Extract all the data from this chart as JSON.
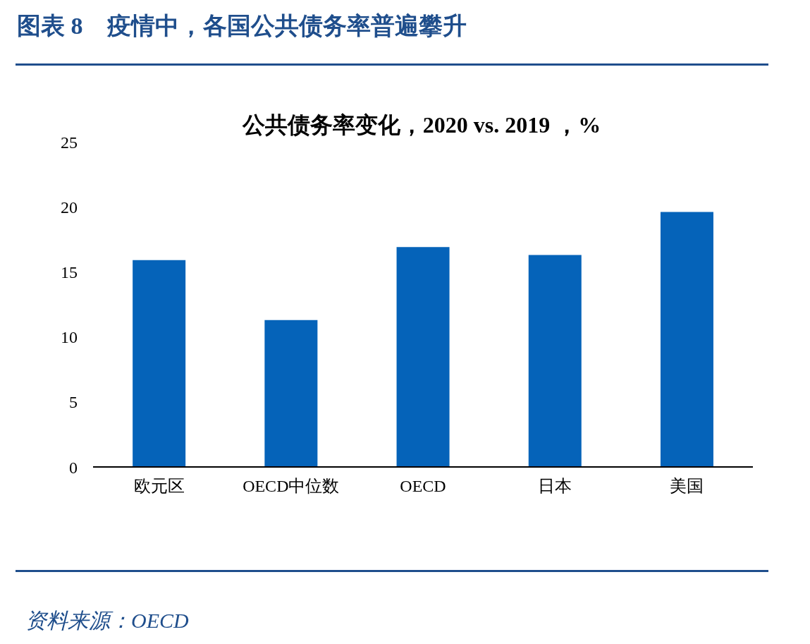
{
  "chart_data": {
    "type": "bar",
    "title": "图表 8　疫情中，各国公共债务率普遍攀升",
    "subtitle": "公共债务率变化，2020 vs. 2019 ，%",
    "categories": [
      "欧元区",
      "OECD中位数",
      "OECD",
      "日本",
      "美国"
    ],
    "values": [
      15.9,
      11.3,
      16.9,
      16.3,
      19.6
    ],
    "color": "#0563b9",
    "ylim": [
      0,
      25
    ],
    "yticks": [
      0,
      5,
      10,
      15,
      20,
      25
    ],
    "grid": false,
    "annotations": [
      "资料来源：OECD"
    ]
  }
}
